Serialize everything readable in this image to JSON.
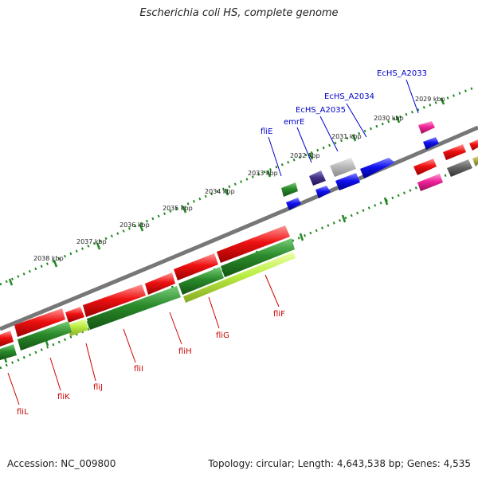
{
  "title": "Escherichia coli HS, complete genome",
  "footer": {
    "accession": "Accession: NC_009800",
    "summary": "Topology: circular; Length: 4,643,538 bp; Genes: 4,535"
  },
  "ticks": [
    "2029 kbp",
    "2030 kbp",
    "2031 kbp",
    "2032 kbp",
    "2033 kbp",
    "2034 kbp",
    "2035 kbp",
    "2036 kbp",
    "2037 kbp",
    "2038 kbp"
  ],
  "genes_top": [
    "EcHS_A2033",
    "EcHS_A2034",
    "EcHS_A2035",
    "emrE",
    "fliE"
  ],
  "genes_bottom": [
    "fliF",
    "fliG",
    "fliH",
    "fliI",
    "fliJ",
    "fliK",
    "fliL"
  ],
  "colors": {
    "backbone": "#777777",
    "tick": "#228822",
    "red": "#ee1111",
    "green": "#2a8a2a",
    "lime": "#bbee44",
    "blue": "#1010ee",
    "pink": "#ee2299",
    "gray": "#888888",
    "purple": "#443388"
  }
}
